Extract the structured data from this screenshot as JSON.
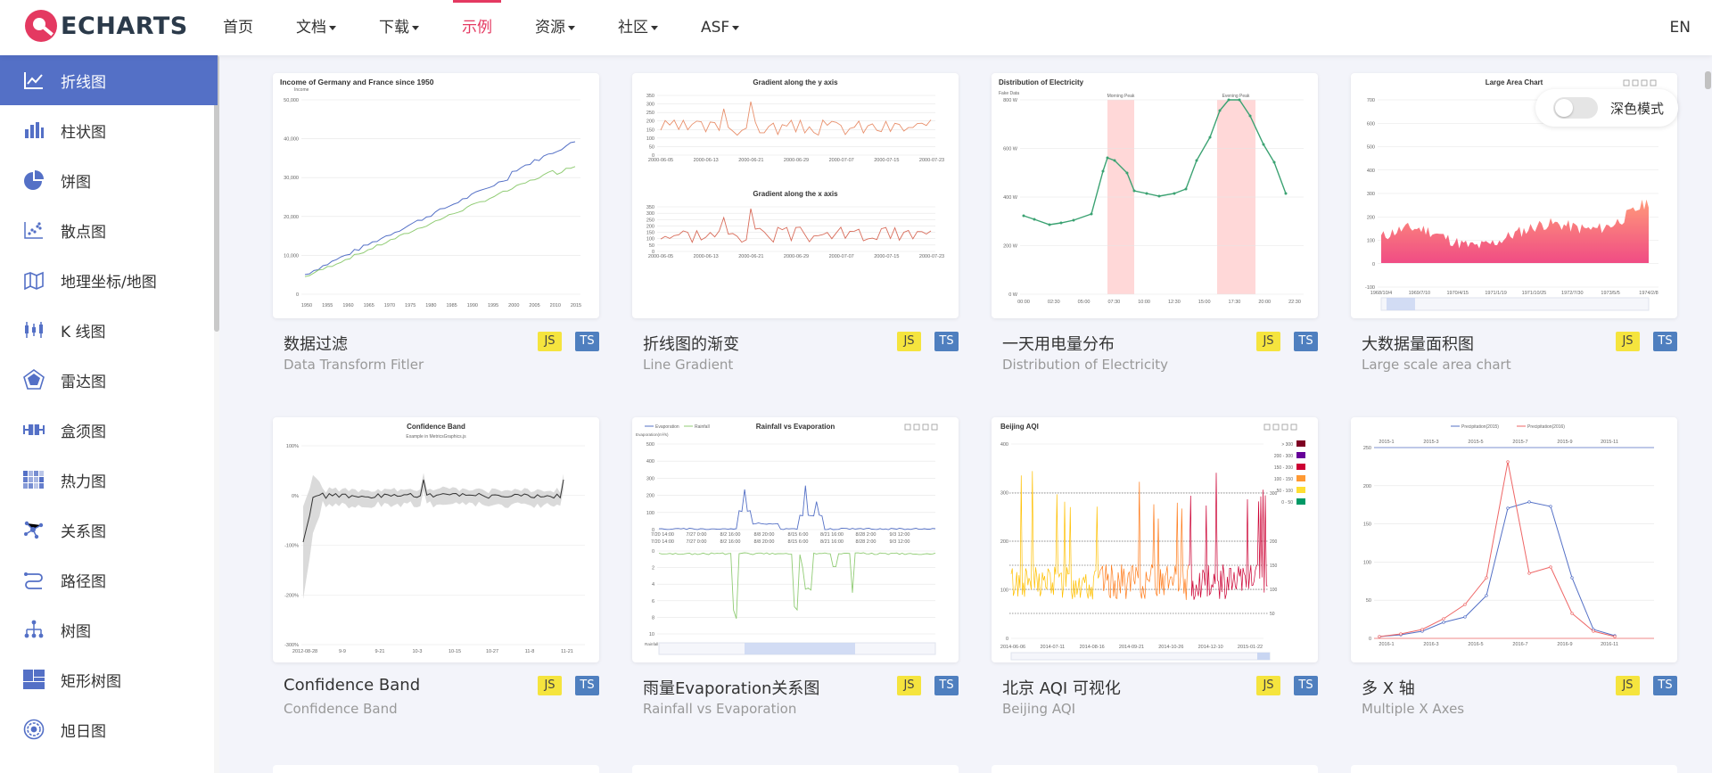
{
  "brand": {
    "name": "ECHARTS",
    "accent": "#e43961",
    "primary": "#5470c6"
  },
  "nav": {
    "items": [
      {
        "label": "首页",
        "has_caret": false,
        "active": false
      },
      {
        "label": "文档",
        "has_caret": true,
        "active": false
      },
      {
        "label": "下载",
        "has_caret": true,
        "active": false
      },
      {
        "label": "示例",
        "has_caret": false,
        "active": true
      },
      {
        "label": "资源",
        "has_caret": true,
        "active": false
      },
      {
        "label": "社区",
        "has_caret": true,
        "active": false
      },
      {
        "label": "ASF",
        "has_caret": true,
        "active": false
      }
    ],
    "lang": "EN"
  },
  "sidebar": {
    "items": [
      {
        "label": "折线图",
        "icon": "line-chart-icon",
        "active": true
      },
      {
        "label": "柱状图",
        "icon": "bar-chart-icon"
      },
      {
        "label": "饼图",
        "icon": "pie-chart-icon"
      },
      {
        "label": "散点图",
        "icon": "scatter-chart-icon"
      },
      {
        "label": "地理坐标/地图",
        "icon": "map-icon"
      },
      {
        "label": "K 线图",
        "icon": "candlestick-icon"
      },
      {
        "label": "雷达图",
        "icon": "radar-icon"
      },
      {
        "label": "盒须图",
        "icon": "boxplot-icon"
      },
      {
        "label": "热力图",
        "icon": "heatmap-icon"
      },
      {
        "label": "关系图",
        "icon": "graph-icon"
      },
      {
        "label": "路径图",
        "icon": "lines-icon"
      },
      {
        "label": "树图",
        "icon": "tree-icon"
      },
      {
        "label": "矩形树图",
        "icon": "treemap-icon"
      },
      {
        "label": "旭日图",
        "icon": "sunburst-icon"
      }
    ]
  },
  "dark_mode": {
    "label": "深色模式"
  },
  "cards": [
    {
      "title": "数据过滤",
      "subtitle": "Data Transform Fitler",
      "js": "JS",
      "ts": "TS",
      "chart_title": "Income of Germany and France since 1950",
      "chart_sub": "Income",
      "y_ticks": [
        "50,000",
        "40,000",
        "30,000",
        "20,000",
        "10,000",
        "0"
      ],
      "x_ticks": [
        "1950",
        "1955",
        "1960",
        "1965",
        "1970",
        "1975",
        "1980",
        "1985",
        "1990",
        "1995",
        "2000",
        "2005",
        "2010",
        "2015"
      ]
    },
    {
      "title": "折线图的渐变",
      "subtitle": "Line Gradient",
      "js": "JS",
      "ts": "TS",
      "chart_title": "Gradient along the y axis",
      "chart_title2": "Gradient along the x axis",
      "y_ticks": [
        "350",
        "300",
        "250",
        "200",
        "150",
        "100",
        "50",
        "0"
      ],
      "x_ticks": [
        "2000-06-05",
        "2000-06-13",
        "2000-06-21",
        "2000-06-29",
        "2000-07-07",
        "2000-07-15",
        "2000-07-23"
      ]
    },
    {
      "title": "一天用电量分布",
      "subtitle": "Distribution of Electricity",
      "js": "JS",
      "ts": "TS",
      "chart_title": "Distribution of Electricity",
      "chart_sub": "Fake Data",
      "mark1": "Morning Peak",
      "mark2": "Evening Peak",
      "y_ticks": [
        "800 W",
        "600 W",
        "400 W",
        "200 W",
        "0 W"
      ],
      "x_ticks": [
        "00:00",
        "02:30",
        "05:00",
        "07:30",
        "10:00",
        "12:30",
        "15:00",
        "17:30",
        "20:00",
        "22:30"
      ]
    },
    {
      "title": "大数据量面积图",
      "subtitle": "Large scale area chart",
      "js": "JS",
      "ts": "TS",
      "chart_title": "Large Area Chart",
      "y_ticks": [
        "700",
        "600",
        "500",
        "400",
        "300",
        "200",
        "100",
        "0",
        "-100"
      ],
      "x_ticks": [
        "1968/10/4",
        "1969/7/10",
        "1970/4/15",
        "1971/1/19",
        "1971/10/25",
        "1972/7/30",
        "1973/5/5",
        "1974/2/8"
      ]
    },
    {
      "title": "Confidence Band",
      "subtitle": "Confidence Band",
      "js": "JS",
      "ts": "TS",
      "chart_title": "Confidence Band",
      "chart_sub": "Example in MetricsGraphics.js",
      "y_ticks": [
        "100%",
        "0%",
        "-100%",
        "-200%",
        "-300%"
      ],
      "x_ticks": [
        "2012-08-28",
        "9-9",
        "9-21",
        "10-3",
        "10-15",
        "10-27",
        "11-8",
        "11-21"
      ]
    },
    {
      "title": "雨量Evaporation关系图",
      "subtitle": "Rainfall vs Evaporation",
      "js": "JS",
      "ts": "TS",
      "chart_title": "Rainfall vs Evaporation",
      "legend1": "Evaporation",
      "legend2": "Rainfall",
      "y_label": "Evaporation(m³/s)",
      "y_label2": "Rainfall(mm)",
      "y_ticks": [
        "500",
        "400",
        "300",
        "200",
        "100",
        "0"
      ],
      "y2_ticks": [
        "0",
        "2",
        "4",
        "6",
        "8",
        "10"
      ],
      "x_ticks": [
        "7/20 14:00",
        "7/27 0:00",
        "8/2 16:00",
        "8/8 20:00",
        "8/15 6:00",
        "8/21 16:00",
        "8/28 2:00",
        "9/3 12:00"
      ]
    },
    {
      "title": "北京 AQI 可视化",
      "subtitle": "Beijing AQI",
      "js": "JS",
      "ts": "TS",
      "chart_title": "Beijing AQI",
      "legend": [
        "> 300",
        "200 - 300",
        "150 - 200",
        "100 - 150",
        "50 - 100",
        "0 - 50"
      ],
      "legend_colors": [
        "#7e0023",
        "#660099",
        "#cc0033",
        "#ff9933",
        "#ffde33",
        "#096"
      ],
      "y_ticks": [
        "400",
        "300",
        "200",
        "100",
        "0"
      ],
      "right_ticks": [
        "300",
        "200",
        "150",
        "100",
        "50"
      ],
      "x_ticks": [
        "2014-06-06",
        "2014-07-11",
        "2014-08-16",
        "2014-09-21",
        "2014-10-26",
        "2014-12-10",
        "2015-01-22"
      ]
    },
    {
      "title": "多 X 轴",
      "subtitle": "Multiple X Axes",
      "js": "JS",
      "ts": "TS",
      "legend1": "Precipitation(2015)",
      "legend2": "Precipitation(2016)",
      "y_ticks": [
        "250",
        "200",
        "150",
        "100",
        "50",
        "0"
      ],
      "x_top": [
        "2015-1",
        "2015-3",
        "2015-5",
        "2015-7",
        "2015-9",
        "2015-11"
      ],
      "x_bottom": [
        "2016-1",
        "2016-3",
        "2016-5",
        "2016-7",
        "2016-9",
        "2016-11"
      ]
    }
  ]
}
